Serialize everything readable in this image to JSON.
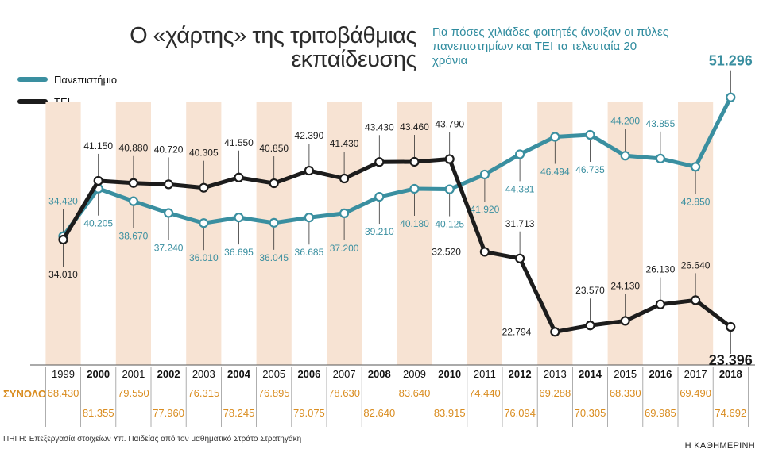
{
  "header": {
    "title_line1": "Ο «χάρτης» της τριτοβάθμιας",
    "title_line2": "εκπαίδευσης",
    "subtitle": "Για πόσες χιλιάδες φοιτητές άνοιξαν οι πύλες πανεπιστημίων και ΤΕΙ τα τελευταία 20 χρόνια"
  },
  "legend": {
    "university": "Πανεπιστήμιο",
    "tei": "ΤΕΙ"
  },
  "summary_label": "ΣΥΝΟΛΟ",
  "source": "ΠΗΓΗ: Επεξεργασία στοιχείων Υπ. Παιδείας από τον μαθηματικό Στράτο Στρατηγάκη",
  "brand": "Η ΚΑΘΗΜΕΡΙΝΗ",
  "colors": {
    "university": "#3a8fa0",
    "tei": "#1c1c1c",
    "band": "#f7e3d3",
    "total": "#d98c1f"
  },
  "chart_data": {
    "type": "line",
    "categories": [
      "1999",
      "2000",
      "2001",
      "2002",
      "2003",
      "2004",
      "2005",
      "2006",
      "2007",
      "2008",
      "2009",
      "2010",
      "2011",
      "2012",
      "2013",
      "2014",
      "2015",
      "2016",
      "2017",
      "2018"
    ],
    "series": [
      {
        "name": "Πανεπιστήμιο",
        "values": [
          34.42,
          40.205,
          38.67,
          37.24,
          36.01,
          36.695,
          36.045,
          36.685,
          37.2,
          39.21,
          40.18,
          40.125,
          41.92,
          44.381,
          46.494,
          46.735,
          44.2,
          43.855,
          42.85,
          51.296
        ],
        "labels": [
          "34.420",
          "40.205",
          "38.670",
          "37.240",
          "36.010",
          "36.695",
          "36.045",
          "36.685",
          "37.200",
          "39.210",
          "40.180",
          "40.125",
          "41.920",
          "44.381",
          "46.494",
          "46.735",
          "44.200",
          "43.855",
          "42.850",
          "51.296"
        ]
      },
      {
        "name": "ΤΕΙ",
        "values": [
          34.01,
          41.15,
          40.88,
          40.72,
          40.305,
          41.55,
          40.85,
          42.39,
          41.43,
          43.43,
          43.46,
          43.79,
          32.52,
          31.713,
          22.794,
          23.57,
          24.13,
          26.13,
          26.64,
          23.396
        ],
        "labels": [
          "34.010",
          "41.150",
          "40.880",
          "40.720",
          "40.305",
          "41.550",
          "40.850",
          "42.390",
          "41.430",
          "43.430",
          "43.460",
          "43.790",
          "32.520",
          "31.713",
          "22.794",
          "23.570",
          "24.130",
          "26.130",
          "26.640",
          "23.396"
        ]
      }
    ],
    "totals": [
      "68.430",
      "81.355",
      "79.550",
      "77.960",
      "76.315",
      "78.245",
      "76.895",
      "79.075",
      "78.630",
      "82.640",
      "83.640",
      "83.915",
      "74.440",
      "76.094",
      "69.288",
      "70.305",
      "68.330",
      "69.985",
      "69.490",
      "74.692"
    ],
    "bold_years": [
      "2000",
      "2002",
      "2004",
      "2006",
      "2008",
      "2010",
      "2012",
      "2014",
      "2016",
      "2018"
    ]
  }
}
